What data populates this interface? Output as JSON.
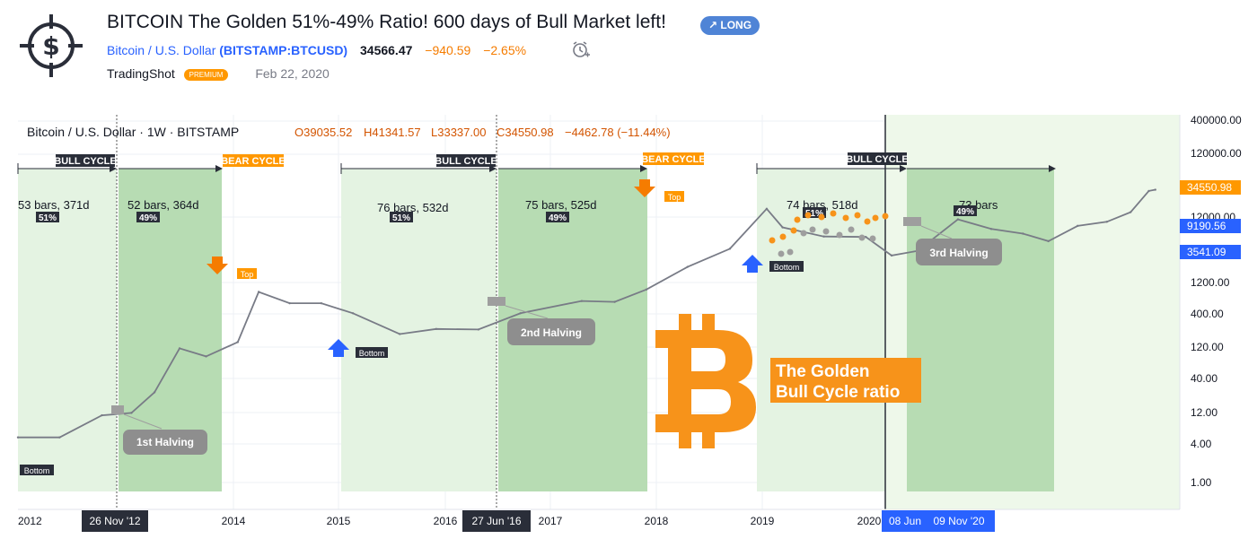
{
  "header": {
    "title": "BITCOIN The Golden 51%-49% Ratio! 600 days of Bull Market left!",
    "badge": "LONG",
    "symbol_name": "Bitcoin / U.S. Dollar",
    "symbol_ticker": "(BITSTAMP:BTCUSD)",
    "price": "34566.47",
    "change": "−940.59",
    "change_pct": "−2.65%",
    "author": "TradingShot",
    "premium": "PREMIUM",
    "date": "Feb 22, 2020",
    "icons": [
      "dollar-target-icon",
      "alarm-clock-icon"
    ]
  },
  "legend": {
    "symbol": "Bitcoin / U.S. Dollar · 1W · BITSTAMP",
    "o": "O39035.52",
    "h": "H41341.57",
    "l": "L33337.00",
    "c": "C34550.98",
    "chg": "−4462.78 (−11.44%)"
  },
  "chart_data": {
    "type": "line",
    "title": "",
    "xlabel": "",
    "ylabel": "",
    "y_scale": "log",
    "ylim": [
      0.5,
      400000
    ],
    "x": [
      "2012-01-01",
      "2012-05-01",
      "2012-09-01",
      "2012-11-26",
      "2013-02-01",
      "2013-04-15",
      "2013-07-01",
      "2013-10-01",
      "2013-12-01",
      "2014-03-01",
      "2014-06-01",
      "2014-09-01",
      "2015-01-15",
      "2015-05-01",
      "2015-09-01",
      "2016-01-01",
      "2016-06-27",
      "2016-10-01",
      "2017-01-01",
      "2017-05-01",
      "2017-09-01",
      "2017-12-17",
      "2018-02-01",
      "2018-06-01",
      "2018-10-01",
      "2018-12-15",
      "2019-03-01",
      "2019-06-26",
      "2019-10-01",
      "2020-01-01",
      "2020-03-15",
      "2020-06-08",
      "2020-09-01",
      "2020-11-09",
      "2021-01-01",
      "2021-01-20"
    ],
    "series": [
      {
        "name": "",
        "values": [
          5,
          5,
          11,
          12,
          25,
          120,
          90,
          150,
          900,
          600,
          600,
          420,
          200,
          240,
          235,
          420,
          650,
          630,
          980,
          2200,
          4200,
          17500,
          9000,
          6500,
          6400,
          3300,
          3900,
          12000,
          8500,
          7200,
          5500,
          9500,
          11000,
          15500,
          33000,
          34550
        ]
      }
    ],
    "y_ticks": [
      "400000.00",
      "120000.00",
      "12000.00",
      "1200.00",
      "400.00",
      "120.00",
      "40.00",
      "12.00",
      "4.00",
      "1.00"
    ],
    "x_ticks": [
      "2012",
      "26 Nov '12",
      "2014",
      "2015",
      "2016",
      "27 Jun '16",
      "2017",
      "2018",
      "2019",
      "2020",
      "08 Jun",
      "09 Nov '20"
    ],
    "price_tags": [
      "34550.98",
      "9190.56",
      "3541.09"
    ],
    "price_tag_colors": [
      "#ff9800",
      "#2962ff",
      "#2962ff"
    ],
    "cycles": [
      {
        "label": "BULL CYCLE",
        "bars": "53 bars, 371d",
        "pct": "51%"
      },
      {
        "label": "",
        "bars": "52 bars, 364d",
        "pct": "49%"
      },
      {
        "label": "BEAR CYCLE",
        "bars": "",
        "pct": ""
      },
      {
        "label": "BULL CYCLE",
        "bars": "76 bars, 532d",
        "pct": "51%"
      },
      {
        "label": "",
        "bars": "75 bars, 525d",
        "pct": "49%"
      },
      {
        "label": "BEAR CYCLE",
        "bars": "",
        "pct": ""
      },
      {
        "label": "BULL CYCLE",
        "bars": "74 bars, 518d",
        "pct": "51%"
      },
      {
        "label": "",
        "bars": "73 bars",
        "pct": "49%"
      }
    ],
    "annotations": [
      "1st Halving",
      "2nd Halving",
      "3rd Halving",
      "Top",
      "Top",
      "Bottom",
      "Bottom",
      "Bottom"
    ],
    "callout": [
      "The Golden",
      "Bull Cycle ratio"
    ],
    "colors": {
      "line": "#787b86",
      "bull_zone": "#b7dcb3",
      "light_zone": "#e4f3e2",
      "orange": "#f7931a",
      "blue": "#2962ff"
    }
  }
}
